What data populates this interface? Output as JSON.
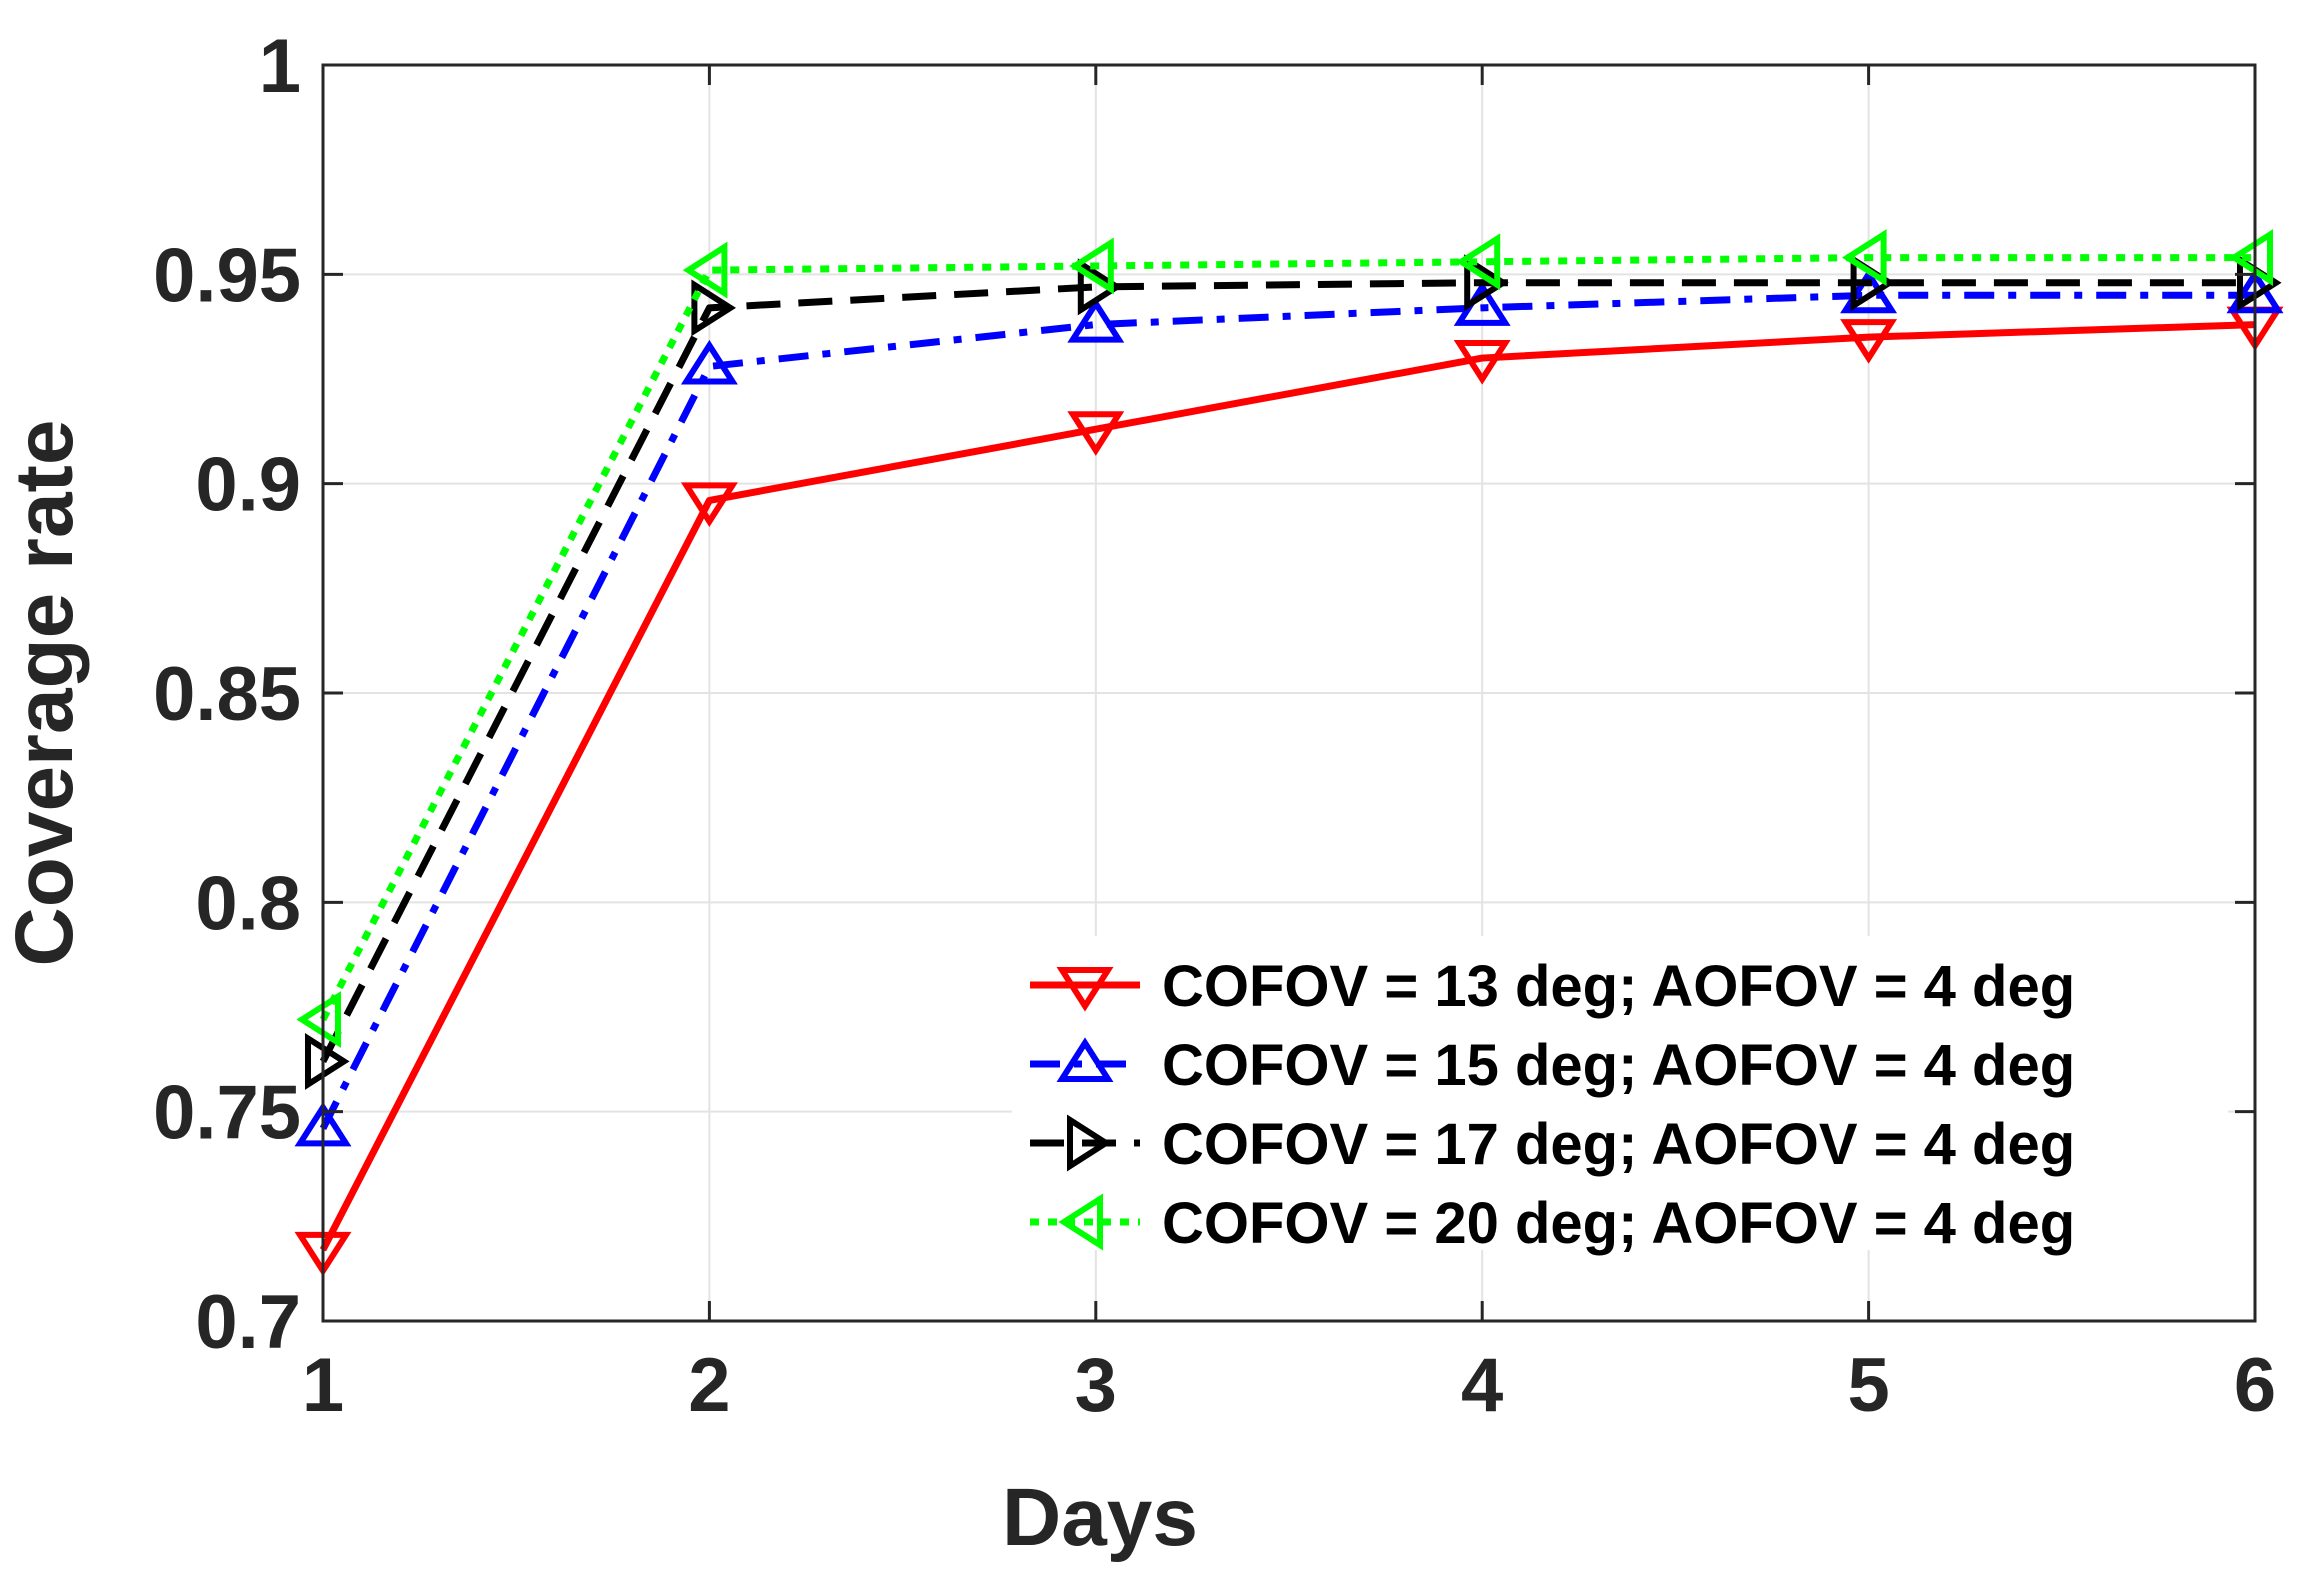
{
  "chart_data": {
    "type": "line",
    "title": "",
    "xlabel": "Days",
    "ylabel": "Coverage rate",
    "x": [
      1,
      2,
      3,
      4,
      5,
      6
    ],
    "xlim": [
      1,
      6
    ],
    "ylim": [
      0.7,
      1
    ],
    "xticks": [
      "1",
      "2",
      "3",
      "4",
      "5",
      "6"
    ],
    "yticks": [
      "0.7",
      "0.75",
      "0.8",
      "0.85",
      "0.9",
      "0.95",
      "1"
    ],
    "grid": true,
    "legend_position": "bottom-right",
    "series": [
      {
        "name": "COFOV = 13 deg; AOFOV = 4 deg",
        "values": [
          0.717,
          0.896,
          0.913,
          0.93,
          0.935,
          0.938
        ],
        "color": "#ff0000",
        "line_style": "solid",
        "marker": "triangle-down"
      },
      {
        "name": "COFOV = 15 deg; AOFOV = 4 deg",
        "values": [
          0.746,
          0.928,
          0.938,
          0.942,
          0.945,
          0.945
        ],
        "color": "#0000ff",
        "line_style": "dash-dot",
        "marker": "triangle-up"
      },
      {
        "name": "COFOV = 17 deg; AOFOV = 4 deg",
        "values": [
          0.762,
          0.942,
          0.947,
          0.948,
          0.948,
          0.948
        ],
        "color": "#000000",
        "line_style": "dashed",
        "marker": "triangle-right"
      },
      {
        "name": "COFOV = 20 deg; AOFOV = 4 deg",
        "values": [
          0.772,
          0.951,
          0.952,
          0.953,
          0.954,
          0.954
        ],
        "color": "#00ff00",
        "line_style": "dotted",
        "marker": "triangle-left"
      }
    ]
  }
}
